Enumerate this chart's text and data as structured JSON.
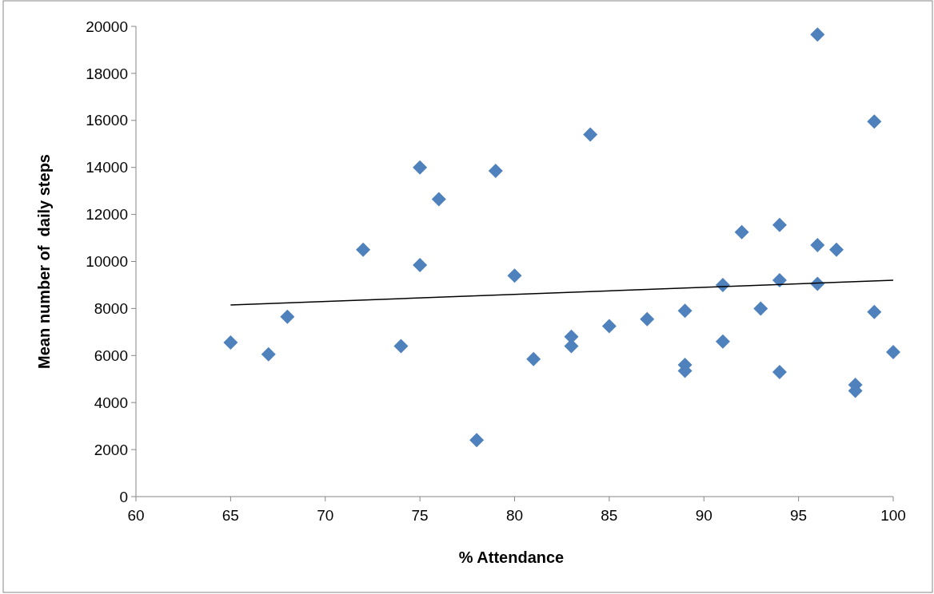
{
  "chart_data": {
    "type": "scatter",
    "xlabel": "% Attendance",
    "ylabel": "Mean number of  daily steps",
    "xlim": [
      60,
      100
    ],
    "xticks": [
      60,
      65,
      70,
      75,
      80,
      85,
      90,
      95,
      100
    ],
    "ylim": [
      0,
      20000
    ],
    "yticks": [
      0,
      2000,
      4000,
      6000,
      8000,
      10000,
      12000,
      14000,
      16000,
      18000,
      20000
    ],
    "grid": false,
    "series": [
      {
        "color": "#4f81bd",
        "marker": "diamond",
        "x": [
          65,
          67,
          68,
          72,
          74,
          75,
          75,
          76,
          78,
          79,
          80,
          81,
          83,
          83,
          84,
          85,
          87,
          89,
          89,
          89,
          91,
          91,
          92,
          93,
          94,
          94,
          94,
          96,
          96,
          96,
          97,
          98,
          98,
          99,
          99,
          100
        ],
        "values": [
          6550,
          6050,
          7650,
          10500,
          6400,
          14000,
          9850,
          12650,
          2400,
          13850,
          9400,
          5850,
          6800,
          6400,
          15400,
          7250,
          7550,
          7900,
          5600,
          5350,
          9000,
          6600,
          11250,
          8000,
          11550,
          9200,
          5300,
          19650,
          10700,
          9050,
          10500,
          4750,
          4500,
          15950,
          7850,
          6150
        ]
      },
      {
        "type": "line",
        "color": "#000000",
        "marker": "none",
        "line_style": "solid",
        "x": [
          65,
          100
        ],
        "values": [
          8150,
          9200
        ]
      }
    ]
  }
}
